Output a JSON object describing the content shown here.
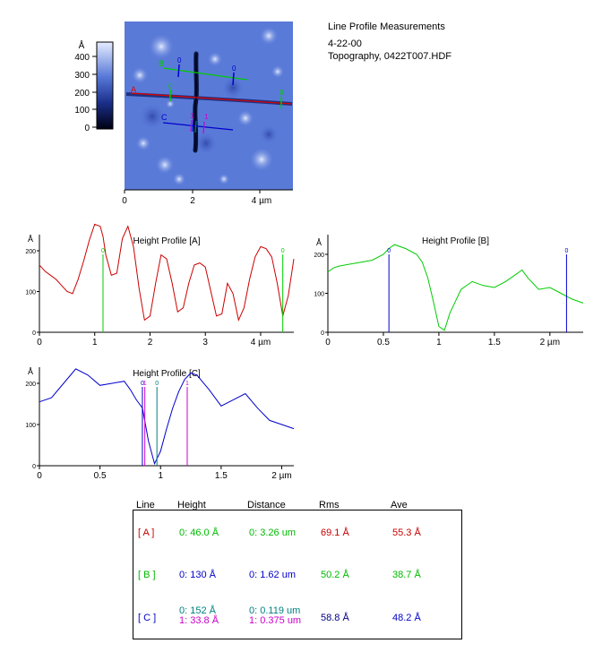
{
  "header": {
    "title": "Line Profile Measurements",
    "date": "4-22-00",
    "file": "Topography,  0422T007.HDF"
  },
  "image": {
    "colorbar_unit": "Å",
    "colorbar_ticks": [
      "400",
      "300",
      "200",
      "100",
      "0"
    ],
    "x_ticks": [
      "0",
      "2",
      "4 µm"
    ],
    "line_labels": {
      "A": "A",
      "B": "B",
      "C": "C",
      "zero": "0",
      "one": "1"
    }
  },
  "chart_data": [
    {
      "type": "line",
      "title": "Height Profile [A]",
      "ylabel": "Å",
      "color": "#cc0000",
      "xlim": [
        0,
        4.6
      ],
      "ylim": [
        0,
        300
      ],
      "x_ticks": [
        0,
        1,
        2,
        3,
        4
      ],
      "x_tick_labels": [
        "0",
        "1",
        "2",
        "3",
        "4 µm"
      ],
      "y_ticks": [
        0,
        100,
        200
      ],
      "y_tick_labels": [
        "0",
        "100",
        "200"
      ],
      "cursors": [
        {
          "x": 1.15,
          "label": "0",
          "color": "#00cc00"
        },
        {
          "x": 4.4,
          "label": "0",
          "color": "#00cc00"
        }
      ],
      "series": [
        {
          "x": [
            0,
            0.1,
            0.2,
            0.3,
            0.4,
            0.5,
            0.6,
            0.7,
            0.8,
            0.9,
            1.0,
            1.1,
            1.15,
            1.2,
            1.3,
            1.4,
            1.5,
            1.6,
            1.7,
            1.8,
            1.9,
            2.0,
            2.1,
            2.2,
            2.3,
            2.4,
            2.5,
            2.6,
            2.7,
            2.8,
            2.9,
            3.0,
            3.1,
            3.2,
            3.3,
            3.4,
            3.5,
            3.6,
            3.7,
            3.8,
            3.9,
            4.0,
            4.1,
            4.2,
            4.3,
            4.4,
            4.5,
            4.6
          ],
          "values": [
            165,
            150,
            140,
            130,
            115,
            100,
            95,
            130,
            175,
            225,
            265,
            260,
            235,
            190,
            140,
            145,
            230,
            260,
            210,
            110,
            30,
            40,
            120,
            190,
            180,
            120,
            50,
            60,
            120,
            165,
            170,
            160,
            100,
            40,
            45,
            120,
            95,
            30,
            60,
            130,
            185,
            210,
            205,
            185,
            120,
            40,
            90,
            180
          ]
        }
      ]
    },
    {
      "type": "line",
      "title": "Height Profile [B]",
      "ylabel": "Å",
      "color": "#00cc00",
      "xlim": [
        0,
        2.3
      ],
      "ylim": [
        0,
        250
      ],
      "x_ticks": [
        0,
        0.5,
        1,
        1.5,
        2
      ],
      "x_tick_labels": [
        "0",
        "0.5",
        "1",
        "1.5",
        "2 µm"
      ],
      "y_ticks": [
        0,
        100,
        200
      ],
      "y_tick_labels": [
        "0",
        "100",
        "200"
      ],
      "cursors": [
        {
          "x": 0.55,
          "label": "0",
          "color": "#0000cc"
        },
        {
          "x": 2.15,
          "label": "0",
          "color": "#0000cc"
        }
      ],
      "series": [
        {
          "x": [
            0,
            0.05,
            0.1,
            0.2,
            0.3,
            0.4,
            0.5,
            0.55,
            0.6,
            0.7,
            0.8,
            0.85,
            0.9,
            0.95,
            1.0,
            1.05,
            1.1,
            1.2,
            1.3,
            1.4,
            1.5,
            1.6,
            1.7,
            1.75,
            1.8,
            1.9,
            2.0,
            2.1,
            2.2,
            2.3
          ],
          "values": [
            155,
            165,
            170,
            175,
            180,
            185,
            200,
            215,
            225,
            215,
            200,
            180,
            140,
            80,
            15,
            5,
            50,
            110,
            130,
            120,
            115,
            130,
            150,
            160,
            140,
            110,
            115,
            100,
            85,
            75
          ]
        }
      ]
    },
    {
      "type": "line",
      "title": "Height Profile [C]",
      "ylabel": "Å",
      "color": "#0000cc",
      "xlim": [
        0,
        2.1
      ],
      "ylim": [
        0,
        270
      ],
      "x_ticks": [
        0,
        0.5,
        1,
        1.5,
        2
      ],
      "x_tick_labels": [
        "0",
        "0.5",
        "1",
        "1.5",
        "2 µm"
      ],
      "y_ticks": [
        0,
        100,
        200
      ],
      "y_tick_labels": [
        "0",
        "100",
        "200"
      ],
      "cursors": [
        {
          "x": 0.85,
          "label": "0",
          "color": "#0000cc"
        },
        {
          "x": 0.87,
          "label": "1",
          "color": "#cc00cc"
        },
        {
          "x": 0.97,
          "label": "0",
          "color": "#008080"
        },
        {
          "x": 1.22,
          "label": "1",
          "color": "#cc00cc"
        }
      ],
      "series": [
        {
          "x": [
            0,
            0.1,
            0.2,
            0.3,
            0.4,
            0.5,
            0.6,
            0.7,
            0.75,
            0.8,
            0.85,
            0.9,
            0.95,
            1.0,
            1.05,
            1.1,
            1.15,
            1.2,
            1.25,
            1.3,
            1.4,
            1.5,
            1.6,
            1.7,
            1.8,
            1.9,
            2.0,
            2.1
          ],
          "values": [
            155,
            165,
            200,
            235,
            220,
            195,
            200,
            205,
            185,
            160,
            140,
            60,
            5,
            35,
            90,
            140,
            180,
            210,
            225,
            220,
            185,
            145,
            160,
            175,
            140,
            110,
            100,
            90
          ]
        }
      ]
    }
  ],
  "table": {
    "headers": {
      "line": "Line",
      "height": "Height",
      "distance": "Distance",
      "rms": "Rms",
      "ave": "Ave"
    },
    "rows": [
      {
        "line": "[ A ]",
        "height1": "0:  46.0 Å",
        "distance1": "0:  3.26 um",
        "rms": "69.1 Å",
        "ave": "55.3 Å"
      },
      {
        "line": "[ B ]",
        "height1": "0:  130 Å",
        "distance1": "0:  1.62 um",
        "rms": "50.2 Å",
        "ave": "38.7 Å"
      },
      {
        "line": "[ C ]",
        "height1": "0:  152 Å",
        "distance1": "0:  0.119 um",
        "height2": "1:  33.8 Å",
        "distance2": "1:  0.375 um",
        "rms": "58.8 Å",
        "ave": "48.2 Å"
      }
    ],
    "colors": {
      "red": "#cc0000",
      "green": "#00bb00",
      "blue": "#0000cc",
      "teal": "#008080",
      "magenta": "#cc00cc",
      "navy": "#000080"
    }
  }
}
